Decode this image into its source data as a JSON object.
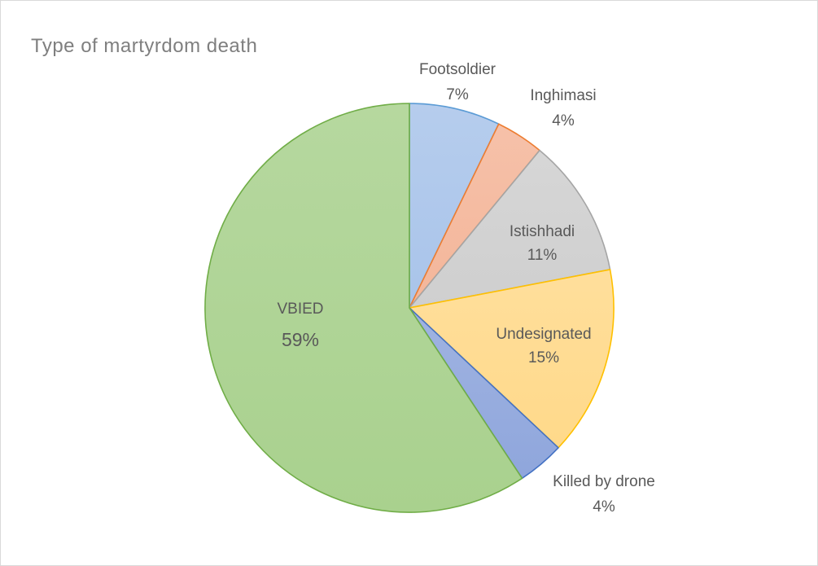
{
  "chart_data": {
    "type": "pie",
    "title": "Type of martyrdom death",
    "slices": [
      {
        "label": "Footsoldier",
        "value_label": "7%",
        "value": 7.2,
        "fill": "#a9c4ea",
        "stroke": "#5b9bd5"
      },
      {
        "label": "Inghimasi",
        "value_label": "4%",
        "value": 3.8,
        "fill": "#f4b69a",
        "stroke": "#ed7d31"
      },
      {
        "label": "Istishhadi",
        "value_label": "11%",
        "value": 11.0,
        "fill": "#cfcfcf",
        "stroke": "#a5a5a5"
      },
      {
        "label": "Undesignated",
        "value_label": "15%",
        "value": 15.0,
        "fill": "#ffd98a",
        "stroke": "#ffc000"
      },
      {
        "label": "Killed by drone",
        "value_label": "4%",
        "value": 3.7,
        "fill": "#8fa6dc",
        "stroke": "#4472c4"
      },
      {
        "label": "VBIED",
        "value_label": "59%",
        "value": 59.3,
        "fill": "#a9d18e",
        "stroke": "#70ad47"
      }
    ]
  }
}
